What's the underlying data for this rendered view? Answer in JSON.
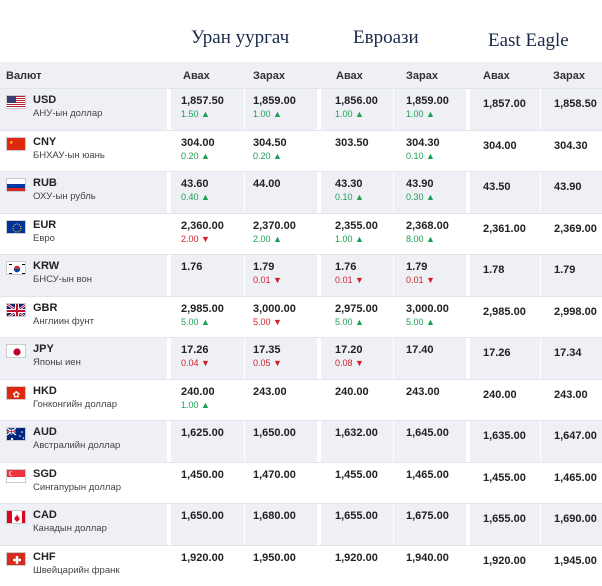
{
  "banks": [
    "Уран уургач",
    "Евроази",
    "East Eagle"
  ],
  "headers": {
    "currency": "Валют",
    "buy": "Авах",
    "sell": "Зарах"
  },
  "rows": [
    {
      "code": "USD",
      "name": "АНУ-ын доллар",
      "flag": "us-flag",
      "b1": {
        "buy": "1,857.50",
        "buy_chg": "1.50",
        "buy_dir": "up",
        "sell": "1,859.00",
        "sell_chg": "1.00",
        "sell_dir": "up"
      },
      "b2": {
        "buy": "1,856.00",
        "buy_chg": "1.00",
        "buy_dir": "up",
        "sell": "1,859.00",
        "sell_chg": "1.00",
        "sell_dir": "up"
      },
      "b3": {
        "buy": "1,857.00",
        "sell": "1,858.50"
      }
    },
    {
      "code": "CNY",
      "name": "БНХАУ-ын юань",
      "flag": "cn-flag",
      "b1": {
        "buy": "304.00",
        "buy_chg": "0.20",
        "buy_dir": "up",
        "sell": "304.50",
        "sell_chg": "0.20",
        "sell_dir": "up"
      },
      "b2": {
        "buy": "303.50",
        "buy_chg": "",
        "buy_dir": "",
        "sell": "304.30",
        "sell_chg": "0.10",
        "sell_dir": "up"
      },
      "b3": {
        "buy": "304.00",
        "sell": "304.30"
      }
    },
    {
      "code": "RUB",
      "name": "ОХУ-ын рубль",
      "flag": "ru-flag",
      "b1": {
        "buy": "43.60",
        "buy_chg": "0.40",
        "buy_dir": "up",
        "sell": "44.00",
        "sell_chg": "",
        "sell_dir": ""
      },
      "b2": {
        "buy": "43.30",
        "buy_chg": "0.10",
        "buy_dir": "up",
        "sell": "43.90",
        "sell_chg": "0.30",
        "sell_dir": "up"
      },
      "b3": {
        "buy": "43.50",
        "sell": "43.90"
      }
    },
    {
      "code": "EUR",
      "name": "Евро",
      "flag": "eu-flag",
      "b1": {
        "buy": "2,360.00",
        "buy_chg": "2.00",
        "buy_dir": "down",
        "sell": "2,370.00",
        "sell_chg": "2.00",
        "sell_dir": "up"
      },
      "b2": {
        "buy": "2,355.00",
        "buy_chg": "1.00",
        "buy_dir": "up",
        "sell": "2,368.00",
        "sell_chg": "8.00",
        "sell_dir": "up"
      },
      "b3": {
        "buy": "2,361.00",
        "sell": "2,369.00"
      }
    },
    {
      "code": "KRW",
      "name": "БНСУ-ын вон",
      "flag": "kr-flag",
      "b1": {
        "buy": "1.76",
        "buy_chg": "",
        "buy_dir": "",
        "sell": "1.79",
        "sell_chg": "0.01",
        "sell_dir": "down"
      },
      "b2": {
        "buy": "1.76",
        "buy_chg": "0.01",
        "buy_dir": "down",
        "sell": "1.79",
        "sell_chg": "0.01",
        "sell_dir": "down"
      },
      "b3": {
        "buy": "1.78",
        "sell": "1.79"
      }
    },
    {
      "code": "GBR",
      "name": "Англиин фунт",
      "flag": "gb-flag",
      "b1": {
        "buy": "2,985.00",
        "buy_chg": "5.00",
        "buy_dir": "up",
        "sell": "3,000.00",
        "sell_chg": "5.00",
        "sell_dir": "down"
      },
      "b2": {
        "buy": "2,975.00",
        "buy_chg": "5.00",
        "buy_dir": "up",
        "sell": "3,000.00",
        "sell_chg": "5.00",
        "sell_dir": "up"
      },
      "b3": {
        "buy": "2,985.00",
        "sell": "2,998.00"
      }
    },
    {
      "code": "JPY",
      "name": "Японы иен",
      "flag": "jp-flag",
      "b1": {
        "buy": "17.26",
        "buy_chg": "0.04",
        "buy_dir": "down",
        "sell": "17.35",
        "sell_chg": "0.05",
        "sell_dir": "down"
      },
      "b2": {
        "buy": "17.20",
        "buy_chg": "0.08",
        "buy_dir": "down",
        "sell": "17.40",
        "sell_chg": "",
        "sell_dir": ""
      },
      "b3": {
        "buy": "17.26",
        "sell": "17.34"
      }
    },
    {
      "code": "HKD",
      "name": "Гонконгийн доллар",
      "flag": "hk-flag",
      "b1": {
        "buy": "240.00",
        "buy_chg": "1.00",
        "buy_dir": "up",
        "sell": "243.00",
        "sell_chg": "",
        "sell_dir": ""
      },
      "b2": {
        "buy": "240.00",
        "buy_chg": "",
        "buy_dir": "",
        "sell": "243.00",
        "sell_chg": "",
        "sell_dir": ""
      },
      "b3": {
        "buy": "240.00",
        "sell": "243.00"
      }
    },
    {
      "code": "AUD",
      "name": "Австралийн доллар",
      "flag": "au-flag",
      "b1": {
        "buy": "1,625.00",
        "buy_chg": "",
        "buy_dir": "",
        "sell": "1,650.00",
        "sell_chg": "",
        "sell_dir": ""
      },
      "b2": {
        "buy": "1,632.00",
        "buy_chg": "",
        "buy_dir": "",
        "sell": "1,645.00",
        "sell_chg": "",
        "sell_dir": ""
      },
      "b3": {
        "buy": "1,635.00",
        "sell": "1,647.00"
      }
    },
    {
      "code": "SGD",
      "name": "Сингапурын доллар",
      "flag": "sg-flag",
      "b1": {
        "buy": "1,450.00",
        "buy_chg": "",
        "buy_dir": "",
        "sell": "1,470.00",
        "sell_chg": "",
        "sell_dir": ""
      },
      "b2": {
        "buy": "1,455.00",
        "buy_chg": "",
        "buy_dir": "",
        "sell": "1,465.00",
        "sell_chg": "",
        "sell_dir": ""
      },
      "b3": {
        "buy": "1,455.00",
        "sell": "1,465.00"
      }
    },
    {
      "code": "CAD",
      "name": "Канадын доллар",
      "flag": "ca-flag",
      "b1": {
        "buy": "1,650.00",
        "buy_chg": "",
        "buy_dir": "",
        "sell": "1,680.00",
        "sell_chg": "",
        "sell_dir": ""
      },
      "b2": {
        "buy": "1,655.00",
        "buy_chg": "",
        "buy_dir": "",
        "sell": "1,675.00",
        "sell_chg": "",
        "sell_dir": ""
      },
      "b3": {
        "buy": "1,655.00",
        "sell": "1,690.00"
      }
    },
    {
      "code": "CHF",
      "name": "Швейцарийн франк",
      "flag": "ch-flag",
      "b1": {
        "buy": "1,920.00",
        "buy_chg": "",
        "buy_dir": "",
        "sell": "1,950.00",
        "sell_chg": "",
        "sell_dir": ""
      },
      "b2": {
        "buy": "1,920.00",
        "buy_chg": "",
        "buy_dir": "",
        "sell": "1,940.00",
        "sell_chg": "",
        "sell_dir": ""
      },
      "b3": {
        "buy": "1,920.00",
        "sell": "1,945.00"
      }
    }
  ],
  "colors": {
    "up": "#1aa055",
    "down": "#d2202a",
    "zebra": "#eef0f5",
    "title": "#1a2a4a"
  }
}
